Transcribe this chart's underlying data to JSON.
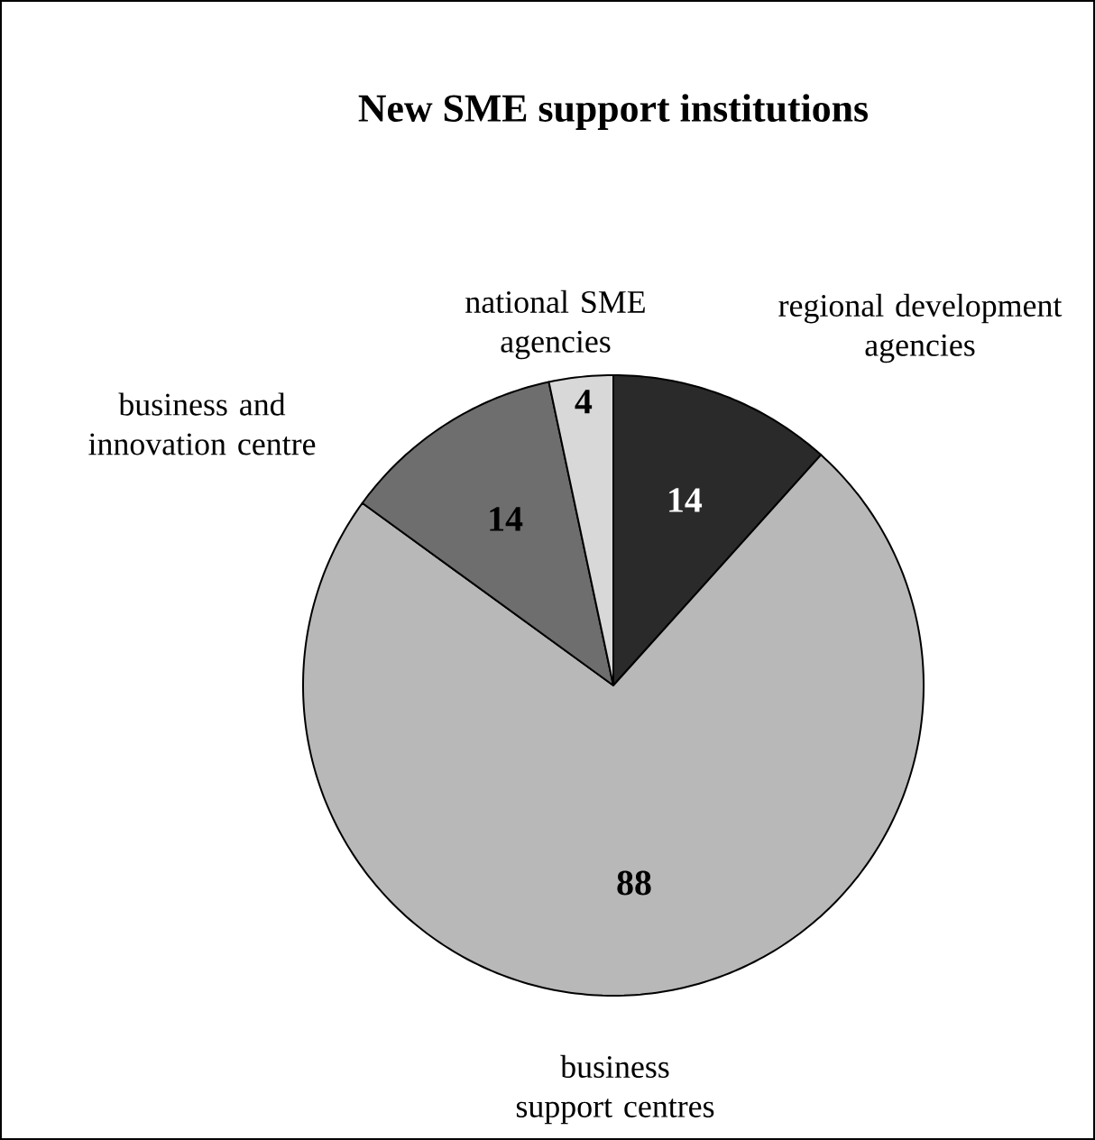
{
  "chart_data": {
    "type": "pie",
    "title": "New SME support institutions",
    "categories": [
      "regional development agencies",
      "business support centres",
      "business and innovation centre",
      "national SME agencies"
    ],
    "values": [
      14,
      88,
      14,
      4
    ],
    "colors": [
      "#2a2a2a",
      "#b8b8b8",
      "#6e6e6e",
      "#d8d8d8"
    ],
    "data_labels": true
  }
}
